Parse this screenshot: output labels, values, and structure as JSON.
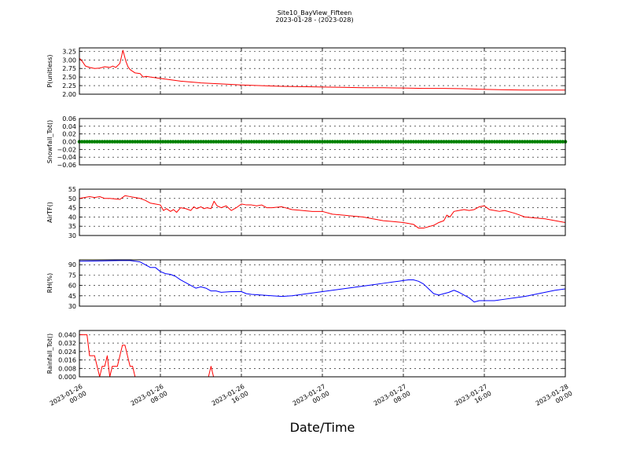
{
  "title": "Site10_BayView_Fifteen",
  "subtitle": "2023-01-28 - (2023-028)",
  "xlabel": "Date/Time",
  "x_ticks": [
    "2023-01-26\n00:00",
    "2023-01-26\n08:00",
    "2023-01-26\n16:00",
    "2023-01-27\n00:00",
    "2023-01-27\n08:00",
    "2023-01-27\n16:00",
    "2023-01-28\n00:00"
  ],
  "chart_data": [
    {
      "type": "line",
      "ylabel": "P(unitless)",
      "color": "#ff0000",
      "xlim": [
        0,
        48
      ],
      "ylim": [
        2.0,
        3.35
      ],
      "yticks": [
        "3.25",
        "3.00",
        "2.75",
        "2.50",
        "2.25",
        "2.00"
      ],
      "ytick_values": [
        3.25,
        3.0,
        2.75,
        2.5,
        2.25,
        2.0
      ],
      "x": [
        0,
        0.3,
        0.6,
        1,
        1.5,
        2,
        2.5,
        3,
        3.3,
        3.6,
        4,
        4.3,
        4.6,
        4.8,
        5,
        5.2,
        5.5,
        6,
        6.3,
        6.6,
        7,
        8,
        10,
        12,
        14,
        16,
        18,
        20,
        22,
        24,
        26,
        28,
        30,
        32,
        34,
        36,
        38,
        40,
        42,
        44,
        46,
        48
      ],
      "y": [
        3.05,
        2.95,
        2.82,
        2.78,
        2.75,
        2.76,
        2.8,
        2.78,
        2.82,
        2.78,
        2.9,
        3.28,
        2.95,
        2.8,
        2.72,
        2.68,
        2.62,
        2.6,
        2.5,
        2.52,
        2.5,
        2.46,
        2.38,
        2.33,
        2.3,
        2.27,
        2.25,
        2.23,
        2.22,
        2.21,
        2.2,
        2.19,
        2.19,
        2.18,
        2.17,
        2.17,
        2.16,
        2.14,
        2.13,
        2.12,
        2.12,
        2.12
      ]
    },
    {
      "type": "scatter",
      "ylabel": "Snowfall_Tot()",
      "color": "#008000",
      "xlim": [
        0,
        48
      ],
      "ylim": [
        -0.06,
        0.06
      ],
      "yticks": [
        "0.06",
        "0.04",
        "0.02",
        "0.00",
        "−0.02",
        "−0.04",
        "−0.06"
      ],
      "ytick_values": [
        0.06,
        0.04,
        0.02,
        0.0,
        -0.02,
        -0.04,
        -0.06
      ],
      "x_step": 0.25,
      "constant_value": 0.0
    },
    {
      "type": "line",
      "ylabel": "AirTF()",
      "color": "#ff0000",
      "xlim": [
        0,
        48
      ],
      "ylim": [
        30,
        55
      ],
      "yticks": [
        "55",
        "50",
        "45",
        "40",
        "35",
        "30"
      ],
      "ytick_values": [
        55,
        50,
        45,
        40,
        35,
        30
      ],
      "x": [
        0,
        0.5,
        1,
        1.5,
        2,
        2.5,
        3,
        4,
        4.5,
        5,
        5.5,
        6,
        6.5,
        7,
        7.5,
        8,
        8.3,
        8.6,
        9,
        9.3,
        9.6,
        10,
        10.5,
        11,
        11.3,
        11.6,
        12,
        12.3,
        12.6,
        13,
        13.3,
        13.6,
        14,
        14.5,
        15,
        15.5,
        16,
        16.5,
        17,
        17.5,
        18,
        18.5,
        19,
        20,
        21,
        22,
        23,
        24,
        25,
        26,
        27,
        28,
        29,
        30,
        31,
        32,
        32.5,
        33,
        33.5,
        34,
        35,
        35.5,
        36,
        36.3,
        36.6,
        37,
        37.5,
        38,
        38.5,
        39,
        39.5,
        40,
        40.5,
        41,
        41.5,
        42,
        43,
        44,
        45,
        46,
        47,
        48
      ],
      "y": [
        50,
        50.5,
        51,
        50.5,
        51,
        50,
        50,
        49.5,
        51.5,
        51,
        50.5,
        50,
        49,
        47.5,
        47,
        46.5,
        43.5,
        44.5,
        43,
        44,
        42.5,
        45,
        44.5,
        43.5,
        45.5,
        44.5,
        45.5,
        44.5,
        45,
        44.5,
        48.5,
        46,
        45,
        46,
        43.5,
        45,
        47,
        46.5,
        46.5,
        46,
        46.5,
        45,
        45,
        45.5,
        44,
        43.5,
        43,
        43,
        41.5,
        41,
        40.5,
        40,
        39,
        38,
        37.5,
        37,
        36.5,
        36,
        34,
        34,
        35.5,
        37,
        38,
        41,
        40,
        43,
        43.5,
        44,
        43.5,
        44,
        45.5,
        46,
        44,
        43.5,
        43,
        43.5,
        42,
        40,
        39.5,
        39,
        38,
        37
      ]
    },
    {
      "type": "line",
      "ylabel": "RH(%)",
      "color": "#0000ff",
      "xlim": [
        0,
        48
      ],
      "ylim": [
        30,
        97
      ],
      "yticks": [
        "90",
        "75",
        "60",
        "45",
        "30"
      ],
      "ytick_values": [
        90,
        75,
        60,
        45,
        30
      ],
      "x": [
        0,
        2,
        4,
        5,
        5.5,
        6,
        6.5,
        7,
        7.5,
        8,
        8.5,
        9,
        9.5,
        10,
        11,
        11.5,
        12,
        12.5,
        13,
        13.5,
        14,
        15,
        16,
        16.5,
        17,
        18,
        19,
        20,
        21,
        22,
        23,
        24,
        25,
        26,
        27,
        28,
        29,
        30,
        31,
        32,
        32.5,
        33,
        33.5,
        34,
        34.5,
        35,
        35.5,
        36,
        36.5,
        37,
        37.5,
        38,
        38.5,
        39,
        39.5,
        40,
        41,
        42,
        43,
        44,
        45,
        46,
        47,
        48
      ],
      "y": [
        95,
        95.5,
        96,
        96,
        95,
        94,
        90,
        86,
        86,
        80,
        77,
        76,
        73,
        68,
        60,
        56,
        58,
        56,
        52,
        52,
        50,
        51,
        51,
        48,
        47,
        46,
        45,
        44,
        45,
        47,
        49,
        51,
        53,
        55,
        57,
        59,
        61,
        63,
        65,
        67,
        68,
        68,
        66,
        62,
        55,
        48,
        46,
        48,
        50,
        53,
        50,
        46,
        42,
        36,
        38,
        38,
        38,
        40,
        42,
        44,
        47,
        50,
        53,
        55
      ]
    },
    {
      "type": "line",
      "ylabel": "Rainfall_Tot()",
      "color": "#ff0000",
      "xlim": [
        0,
        48
      ],
      "ylim": [
        0,
        0.044
      ],
      "yticks": [
        "0.040",
        "0.032",
        "0.024",
        "0.016",
        "0.008",
        "0.000"
      ],
      "ytick_values": [
        0.04,
        0.032,
        0.024,
        0.016,
        0.008,
        0.0
      ],
      "x": [
        0,
        0.25,
        0.5,
        0.75,
        1,
        1.25,
        1.5,
        1.75,
        2,
        2.25,
        2.5,
        2.75,
        3,
        3.25,
        3.5,
        3.75,
        4,
        4.25,
        4.5,
        4.75,
        5,
        5.25,
        5.5,
        5.75,
        6,
        6.25,
        6.5,
        6.75,
        7,
        12.5,
        12.75,
        13,
        13.25,
        48
      ],
      "y": [
        0.04,
        0.04,
        0.04,
        0.04,
        0.02,
        0.02,
        0.02,
        0.01,
        0.0,
        0.01,
        0.01,
        0.02,
        0.0,
        0.01,
        0.01,
        0.01,
        0.02,
        0.03,
        0.03,
        0.02,
        0.01,
        0.01,
        0.0,
        0.0,
        0.0,
        0.0,
        0.0,
        0.0,
        0.0,
        0.0,
        0.0,
        0.01,
        0.0,
        0.0
      ]
    }
  ]
}
